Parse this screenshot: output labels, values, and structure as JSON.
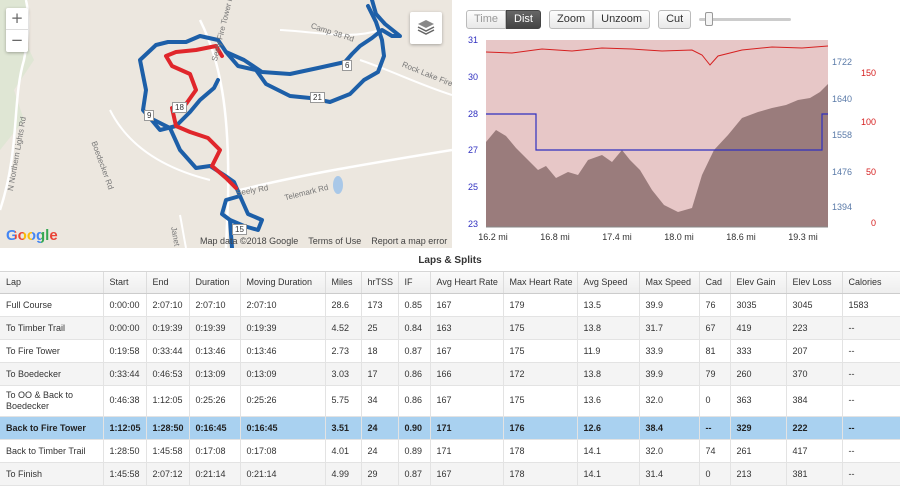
{
  "map": {
    "zoom_in": "+",
    "zoom_out": "−",
    "logo": "Google",
    "map_data": "Map data ©2018 Google",
    "terms": "Terms of Use",
    "report": "Report a map error",
    "roads": [
      "Seely Fire Tower Rd",
      "Camp 38 Rd",
      "Rock Lake Fire Rd",
      "Boedecker Rd",
      "Telemark Rd",
      "Seely Rd",
      "N Northern Lights Rd",
      "Janet"
    ],
    "markers": [
      "6",
      "18",
      "9",
      "21",
      "15"
    ],
    "colors": {
      "route": "#1d5fa8",
      "selected": "#e0262b"
    }
  },
  "chart": {
    "buttons": {
      "time": "Time",
      "dist": "Dist",
      "zoom": "Zoom",
      "unzoom": "Unzoom",
      "cut": "Cut"
    },
    "x_ticks": [
      "16.2 mi",
      "16.8 mi",
      "17.4 mi",
      "18.0 mi",
      "18.6 mi",
      "19.3 mi"
    ],
    "y_speed_ticks": [
      "31",
      "30",
      "28",
      "27",
      "25",
      "23"
    ],
    "y_elev_ticks": [
      "1722",
      "1640",
      "1558",
      "1476",
      "1394"
    ],
    "y_hr_ticks": [
      "150",
      "100",
      "50",
      "0"
    ],
    "colors": {
      "hr": "#d62020",
      "speed": "#3030c0",
      "elevation": "#7a5555"
    }
  },
  "laps": {
    "title": "Laps & Splits",
    "columns": [
      "Lap",
      "Start",
      "End",
      "Duration",
      "Moving Duration",
      "Miles",
      "hrTSS",
      "IF",
      "Avg Heart Rate",
      "Max Heart Rate",
      "Avg Speed",
      "Max Speed",
      "Cad",
      "Elev Gain",
      "Elev Loss",
      "Calories"
    ],
    "rows": [
      [
        "Full Course",
        "0:00:00",
        "2:07:10",
        "2:07:10",
        "2:07:10",
        "28.6",
        "173",
        "0.85",
        "167",
        "179",
        "13.5",
        "39.9",
        "76",
        "3035",
        "3045",
        "1583"
      ],
      [
        "To Timber Trail",
        "0:00:00",
        "0:19:39",
        "0:19:39",
        "0:19:39",
        "4.52",
        "25",
        "0.84",
        "163",
        "175",
        "13.8",
        "31.7",
        "67",
        "419",
        "223",
        "--"
      ],
      [
        "To Fire Tower",
        "0:19:58",
        "0:33:44",
        "0:13:46",
        "0:13:46",
        "2.73",
        "18",
        "0.87",
        "167",
        "175",
        "11.9",
        "33.9",
        "81",
        "333",
        "207",
        "--"
      ],
      [
        "To Boedecker",
        "0:33:44",
        "0:46:53",
        "0:13:09",
        "0:13:09",
        "3.03",
        "17",
        "0.86",
        "166",
        "172",
        "13.8",
        "39.9",
        "79",
        "260",
        "370",
        "--"
      ],
      [
        "To OO & Back to Boedecker",
        "0:46:38",
        "1:12:05",
        "0:25:26",
        "0:25:26",
        "5.75",
        "34",
        "0.86",
        "167",
        "175",
        "13.6",
        "32.0",
        "0",
        "363",
        "384",
        "--"
      ],
      [
        "Back to Fire Tower",
        "1:12:05",
        "1:28:50",
        "0:16:45",
        "0:16:45",
        "3.51",
        "24",
        "0.90",
        "171",
        "176",
        "12.6",
        "38.4",
        "--",
        "329",
        "222",
        "--"
      ],
      [
        "Back to Timber Trail",
        "1:28:50",
        "1:45:58",
        "0:17:08",
        "0:17:08",
        "4.01",
        "24",
        "0.89",
        "171",
        "178",
        "14.1",
        "32.0",
        "74",
        "261",
        "417",
        "--"
      ],
      [
        "To Finish",
        "1:45:58",
        "2:07:12",
        "0:21:14",
        "0:21:14",
        "4.99",
        "29",
        "0.87",
        "167",
        "178",
        "14.1",
        "31.4",
        "0",
        "213",
        "381",
        "--"
      ]
    ],
    "selected_index": 5
  }
}
